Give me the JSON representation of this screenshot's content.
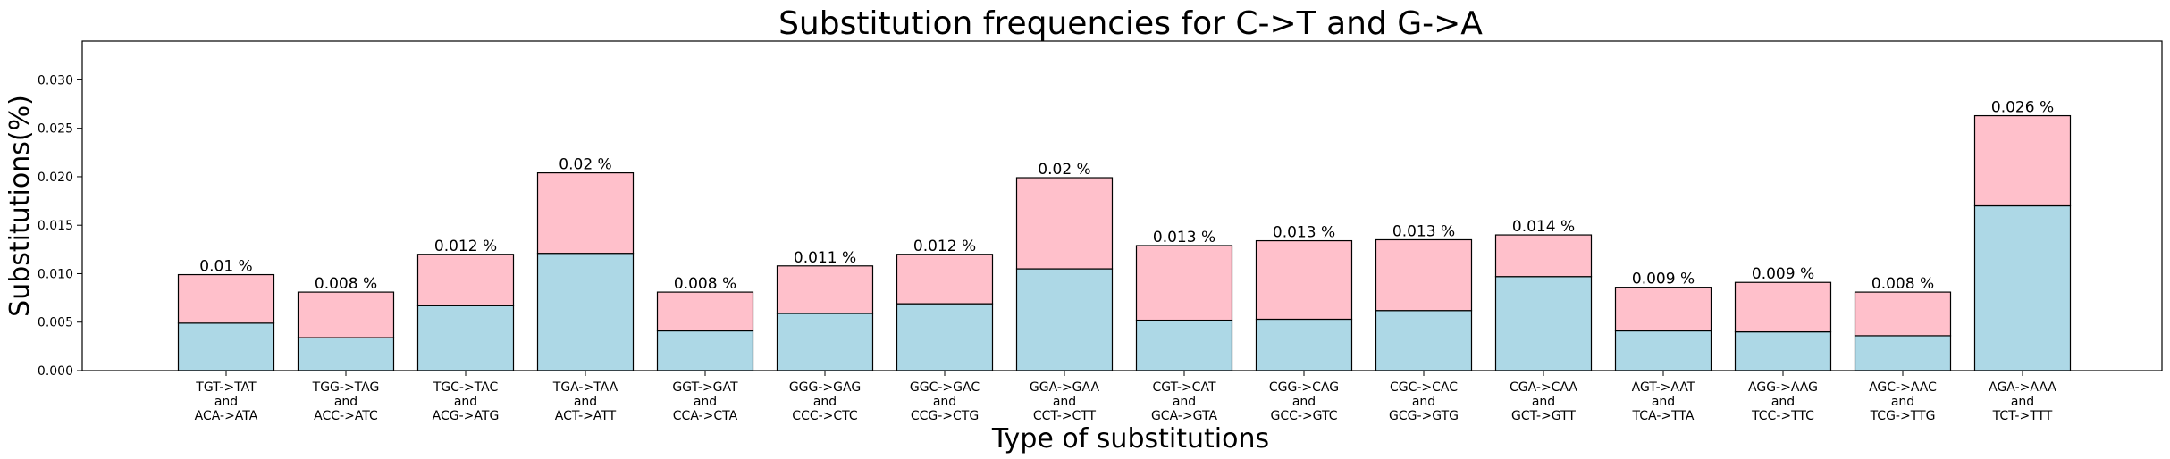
{
  "chart_data": {
    "type": "bar",
    "stacked": true,
    "title": "Substitution frequencies for C->T and G->A",
    "xlabel": "Type of substitutions",
    "ylabel": "Substitutions(%)",
    "ylim": [
      0,
      0.034
    ],
    "yticks": [
      "0.000",
      "0.005",
      "0.010",
      "0.015",
      "0.020",
      "0.025",
      "0.030"
    ],
    "grid": false,
    "categories": [
      [
        "TGT->TAT",
        "and",
        "ACA->ATA"
      ],
      [
        "TGG->TAG",
        "and",
        "ACC->ATC"
      ],
      [
        "TGC->TAC",
        "and",
        "ACG->ATG"
      ],
      [
        "TGA->TAA",
        "and",
        "ACT->ATT"
      ],
      [
        "GGT->GAT",
        "and",
        "CCA->CTA"
      ],
      [
        "GGG->GAG",
        "and",
        "CCC->CTC"
      ],
      [
        "GGC->GAC",
        "and",
        "CCG->CTG"
      ],
      [
        "GGA->GAA",
        "and",
        "CCT->CTT"
      ],
      [
        "CGT->CAT",
        "and",
        "GCA->GTA"
      ],
      [
        "CGG->CAG",
        "and",
        "GCC->GTC"
      ],
      [
        "CGC->CAC",
        "and",
        "GCG->GTG"
      ],
      [
        "CGA->CAA",
        "and",
        "GCT->GTT"
      ],
      [
        "AGT->AAT",
        "and",
        "TCA->TTA"
      ],
      [
        "AGG->AAG",
        "and",
        "TCC->TTC"
      ],
      [
        "AGC->AAC",
        "and",
        "TCG->TTG"
      ],
      [
        "AGA->AAA",
        "and",
        "TCT->TTT"
      ]
    ],
    "series": [
      {
        "color": "#add8e6",
        "values": [
          0.0049,
          0.0034,
          0.0067,
          0.0121,
          0.0041,
          0.0059,
          0.0069,
          0.0105,
          0.0052,
          0.0053,
          0.0062,
          0.0097,
          0.0041,
          0.004,
          0.0036,
          0.017
        ]
      },
      {
        "color": "#ffc0cb",
        "values": [
          0.005,
          0.0047,
          0.0053,
          0.0083,
          0.004,
          0.0049,
          0.0051,
          0.0094,
          0.0077,
          0.0081,
          0.0073,
          0.0043,
          0.0045,
          0.0051,
          0.0045,
          0.0093
        ]
      }
    ],
    "totals": [
      0.0099,
      0.0081,
      0.012,
      0.0204,
      0.0081,
      0.0108,
      0.012,
      0.0199,
      0.0129,
      0.0134,
      0.0135,
      0.014,
      0.0086,
      0.0091,
      0.0081,
      0.0263
    ],
    "data_labels": [
      "0.01 %",
      "0.008 %",
      "0.012 %",
      "0.02 %",
      "0.008 %",
      "0.011 %",
      "0.012 %",
      "0.02 %",
      "0.013 %",
      "0.013 %",
      "0.013 %",
      "0.014 %",
      "0.009 %",
      "0.009 %",
      "0.008 %",
      "0.026 %"
    ]
  }
}
